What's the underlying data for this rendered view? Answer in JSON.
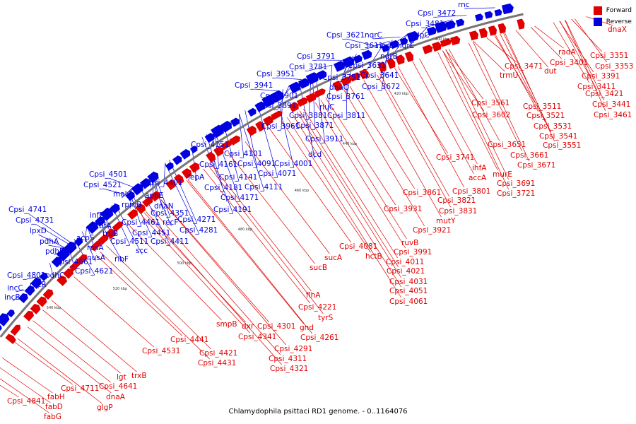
{
  "caption": "Chlamydophila psittaci RD1 genome. - 0..1164076",
  "legend": [
    {
      "label": "Forward",
      "color": "#e00000"
    },
    {
      "label": "Reverse",
      "color": "#0000e0"
    }
  ],
  "colors": {
    "forward": "#e00000",
    "reverse": "#0000e0",
    "backbone": "#777777"
  },
  "ticks": [
    "400 kbp",
    "420 kbp",
    "440 kbp",
    "460 kbp",
    "480 kbp",
    "500 kbp",
    "520 kbp",
    "540 kbp"
  ],
  "reverse_genes": [
    "rnc",
    "Cpsi_3472",
    "Cpsi_3481",
    "clpC",
    "Cpsi_3621",
    "nqrC",
    "Cpsi_3611",
    "nqrD",
    "nqrE",
    "nqrB",
    "Cpsi_3631",
    "Cpsi_3641",
    "Cpsi_3672",
    "Cpsi_3791",
    "Cpsi_3781",
    "Cpsi_3751",
    "dnaQ",
    "Cpsi_3761",
    "Cpsi_3951",
    "Cpsi_3941",
    "Cpsi_3901",
    "Cpsi_3891",
    "rluC",
    "Cpsi_3881",
    "Cpsi_3811",
    "Cpsi_3871",
    "Cpsi_3961",
    "Cpsi_3911",
    "dcd",
    "Cpsi_4151",
    "Cpsi_4101",
    "Cpsi_4161",
    "Cpsi_4091",
    "Cpsi_4001",
    "Cpsi_4071",
    "lepA",
    "Cpsi_4141",
    "Cpsi_4181",
    "Cpsi_4111",
    "Cpsi_4171",
    "Cpsi_4191",
    "Cpsi_4271",
    "Cpsi_4281",
    "Cpsi_4501",
    "Cpsi_4521",
    "Cpsi_4401",
    "malQ",
    "apbE",
    "rpmB",
    "dnaN",
    "Cpsi_4351",
    "infB",
    "Cpsi_4461",
    "recF",
    "tbfA",
    "Cpsi_4451",
    "truB",
    "Cpsi_4511",
    "Cpsi_4411",
    "acpS",
    "scc",
    "rpsA",
    "ribF",
    "nusA",
    "Cpsi_4741",
    "Cpsi_4731",
    "lpxD",
    "pdhA",
    "pdhB",
    "Cpsi_4661",
    "pdhC",
    "Cpsi_4621",
    "Cpsi_4801",
    "recR",
    "incC",
    "incB"
  ],
  "forward_genes": [
    "dnaX",
    "radA",
    "Cpsi_3351",
    "Cpsi_3401",
    "Cpsi_3353",
    "Cpsi_3471",
    "dut",
    "Cpsi_3391",
    "trmU",
    "Cpsi_3411",
    "Cpsi_3421",
    "Cpsi_3441",
    "Cpsi_3461",
    "Cpsi_3561",
    "Cpsi_3511",
    "Cpsi_3602",
    "Cpsi_3521",
    "Cpsi_3531",
    "Cpsi_3541",
    "Cpsi_3551",
    "Cpsi_3651",
    "Cpsi_3661",
    "Cpsi_3741",
    "Cpsi_3671",
    "ihfA",
    "accA",
    "murE",
    "Cpsi_3691",
    "Cpsi_3721",
    "Cpsi_3801",
    "Cpsi_3861",
    "Cpsi_3821",
    "Cpsi_3831",
    "Cpsi_3931",
    "mutY",
    "Cpsi_3921",
    "ruvB",
    "Cpsi_3991",
    "Cpsi_4081",
    "hctB",
    "Cpsi_4011",
    "sucA",
    "Cpsi_4021",
    "sucB",
    "Cpsi_4031",
    "Cpsi_4051",
    "Cpsi_4061",
    "flhA",
    "Cpsi_4221",
    "tyrS",
    "dxr",
    "Cpsi_4301",
    "gnd",
    "Cpsi_4341",
    "Cpsi_4261",
    "Cpsi_4291",
    "smpB",
    "Cpsi_4311",
    "Cpsi_4441",
    "Cpsi_4421",
    "Cpsi_4321",
    "Cpsi_4431",
    "Cpsi_4531",
    "trxB",
    "lgt",
    "Cpsi_4641",
    "Cpsi_4711",
    "dnaA",
    "glgP",
    "fabH",
    "fabD",
    "fabG",
    "Cpsi_4841"
  ]
}
